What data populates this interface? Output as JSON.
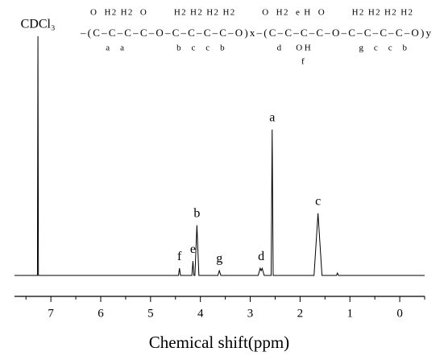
{
  "chart_data": {
    "type": "line",
    "x_label": "Chemical shift(ppm)",
    "structure": {
      "top": "O  H2 H2  O        H2 H2 H2 H2        O  H2  e H  O        H2 H2 H2 H2",
      "main": "‒(C‒C‒C‒C‒O‒C‒C‒C‒C‒O)x‒(C‒C‒C‒C‒O‒C‒C‒C‒C‒O)y",
      "bottom": "      a  a            b  c  c  b            d   OH           g  c  c  b",
      "sub": "f"
    },
    "xlim": [
      7.73,
      -0.5
    ],
    "ylim": [
      0,
      100
    ],
    "xticks": [
      7,
      6,
      5,
      4,
      3,
      2,
      1,
      0
    ],
    "xminorticks": [
      7.5,
      6.5,
      5.5,
      4.5,
      3.5,
      2.5,
      1.5,
      0.5,
      -0.5
    ],
    "color": "#000000",
    "x": [
      7.73,
      7.3,
      7.27,
      7.26,
      7.25,
      4.5,
      4.44,
      4.42,
      4.4,
      4.2,
      4.17,
      4.15,
      4.13,
      4.11,
      4.07,
      4.03,
      3.65,
      3.62,
      3.59,
      2.84,
      2.8,
      2.78,
      2.76,
      2.72,
      2.58,
      2.56,
      2.54,
      1.72,
      1.64,
      1.56,
      1.27,
      1.25,
      1.23,
      -0.5
    ],
    "values": [
      0,
      0,
      0,
      100,
      0,
      0,
      0,
      3,
      0,
      0,
      0,
      6,
      0,
      0,
      21,
      0,
      0,
      2,
      0,
      0,
      3,
      2,
      3,
      0,
      0,
      61,
      0,
      0,
      26,
      0,
      0,
      1,
      0,
      0
    ],
    "peaks": [
      {
        "label": "CDCl₃",
        "x": 7.26,
        "y": 100
      },
      {
        "label": "f",
        "x": 4.42,
        "y": 3
      },
      {
        "label": "e",
        "x": 4.15,
        "y": 6
      },
      {
        "label": "b",
        "x": 4.07,
        "y": 21
      },
      {
        "label": "g",
        "x": 3.62,
        "y": 2
      },
      {
        "label": "d",
        "x": 2.78,
        "y": 3
      },
      {
        "label": "a",
        "x": 2.56,
        "y": 61
      },
      {
        "label": "c",
        "x": 1.64,
        "y": 26
      }
    ]
  }
}
